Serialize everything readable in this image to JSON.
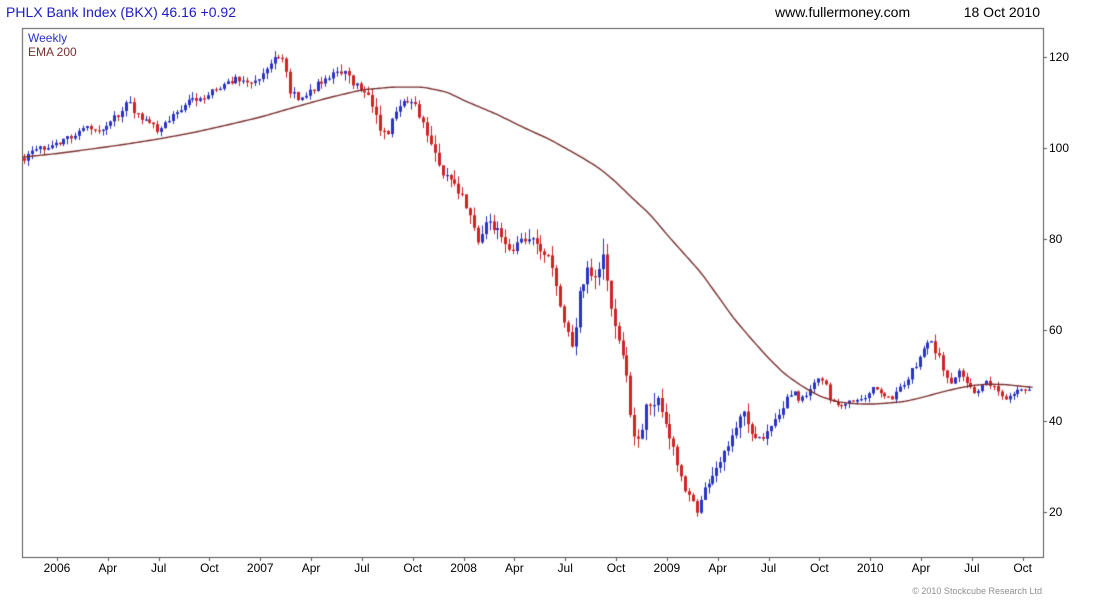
{
  "header": {
    "title": "PHLX Bank Index (BKX) 46.16 +0.92",
    "website": "www.fullermoney.com",
    "date": "18 Oct 2010"
  },
  "legend": {
    "interval": "Weekly",
    "overlay": "EMA 200"
  },
  "footer": {
    "copyright": "© 2010 Stockcube Research Ltd"
  },
  "colors": {
    "up": "#2a34c4",
    "down": "#d02424",
    "ema": "#7a3030",
    "title": "#1c1cc0",
    "frame": "#555555",
    "text": "#000000",
    "copyright": "#8f8f8f",
    "background": "#ffffff"
  },
  "chart_data": {
    "type": "candlestick",
    "instrument": "PHLX Bank Index (BKX)",
    "last": 46.16,
    "change": "+0.92",
    "interval": "Weekly",
    "overlay_name": "EMA 200",
    "x_axis": {
      "domain": [
        2005.828,
        2010.85
      ],
      "ticks": [
        {
          "t": 2006.0,
          "label": "2006"
        },
        {
          "t": 2006.25,
          "label": "Apr"
        },
        {
          "t": 2006.5,
          "label": "Jul"
        },
        {
          "t": 2006.75,
          "label": "Oct"
        },
        {
          "t": 2007.0,
          "label": "2007"
        },
        {
          "t": 2007.25,
          "label": "Apr"
        },
        {
          "t": 2007.5,
          "label": "Jul"
        },
        {
          "t": 2007.75,
          "label": "Oct"
        },
        {
          "t": 2008.0,
          "label": "2008"
        },
        {
          "t": 2008.25,
          "label": "Apr"
        },
        {
          "t": 2008.5,
          "label": "Jul"
        },
        {
          "t": 2008.75,
          "label": "Oct"
        },
        {
          "t": 2009.0,
          "label": "2009"
        },
        {
          "t": 2009.25,
          "label": "Apr"
        },
        {
          "t": 2009.5,
          "label": "Jul"
        },
        {
          "t": 2009.75,
          "label": "Oct"
        },
        {
          "t": 2010.0,
          "label": "2010"
        },
        {
          "t": 2010.25,
          "label": "Apr"
        },
        {
          "t": 2010.5,
          "label": "Jul"
        },
        {
          "t": 2010.75,
          "label": "Oct"
        }
      ]
    },
    "y_axis": {
      "side": "right",
      "domain": [
        10.1,
        126.4
      ],
      "ticks": [
        20,
        40,
        60,
        80,
        100,
        120
      ]
    },
    "price_close_keypoints": [
      [
        2005.83,
        97.5
      ],
      [
        2005.9,
        99.5
      ],
      [
        2005.96,
        100.5
      ],
      [
        2006.04,
        102
      ],
      [
        2006.1,
        103.5
      ],
      [
        2006.16,
        105
      ],
      [
        2006.22,
        103.5
      ],
      [
        2006.28,
        106.5
      ],
      [
        2006.35,
        110
      ],
      [
        2006.42,
        106
      ],
      [
        2006.5,
        104
      ],
      [
        2006.56,
        107
      ],
      [
        2006.62,
        109.5
      ],
      [
        2006.69,
        111
      ],
      [
        2006.75,
        112
      ],
      [
        2006.81,
        113.5
      ],
      [
        2006.88,
        115.5
      ],
      [
        2006.96,
        114.5
      ],
      [
        2007.02,
        117
      ],
      [
        2007.08,
        120
      ],
      [
        2007.12,
        119
      ],
      [
        2007.14,
        112.5
      ],
      [
        2007.2,
        110.5
      ],
      [
        2007.27,
        113.5
      ],
      [
        2007.33,
        116
      ],
      [
        2007.4,
        117
      ],
      [
        2007.46,
        114.5
      ],
      [
        2007.52,
        112.5
      ],
      [
        2007.58,
        106
      ],
      [
        2007.62,
        101.5
      ],
      [
        2007.66,
        107
      ],
      [
        2007.71,
        110
      ],
      [
        2007.77,
        108.5
      ],
      [
        2007.83,
        103
      ],
      [
        2007.87,
        96.5
      ],
      [
        2007.92,
        94
      ],
      [
        2007.98,
        90
      ],
      [
        2008.03,
        86
      ],
      [
        2008.07,
        79.5
      ],
      [
        2008.12,
        84.5
      ],
      [
        2008.17,
        81
      ],
      [
        2008.22,
        76.5
      ],
      [
        2008.28,
        80
      ],
      [
        2008.33,
        81.5
      ],
      [
        2008.38,
        78.5
      ],
      [
        2008.44,
        73
      ],
      [
        2008.48,
        65
      ],
      [
        2008.53,
        55
      ],
      [
        2008.57,
        68
      ],
      [
        2008.61,
        73
      ],
      [
        2008.65,
        70
      ],
      [
        2008.69,
        77.5
      ],
      [
        2008.72,
        68
      ],
      [
        2008.75,
        58
      ],
      [
        2008.79,
        53
      ],
      [
        2008.83,
        38.5
      ],
      [
        2008.87,
        35
      ],
      [
        2008.9,
        43.5
      ],
      [
        2008.94,
        45
      ],
      [
        2008.98,
        41.5
      ],
      [
        2009.03,
        34
      ],
      [
        2009.07,
        28
      ],
      [
        2009.11,
        23
      ],
      [
        2009.15,
        19.5
      ],
      [
        2009.19,
        25
      ],
      [
        2009.23,
        29
      ],
      [
        2009.27,
        31.5
      ],
      [
        2009.31,
        35.5
      ],
      [
        2009.35,
        39.5
      ],
      [
        2009.38,
        41.5
      ],
      [
        2009.42,
        37.5
      ],
      [
        2009.46,
        36
      ],
      [
        2009.5,
        38
      ],
      [
        2009.54,
        41
      ],
      [
        2009.58,
        44.5
      ],
      [
        2009.62,
        46
      ],
      [
        2009.65,
        45
      ],
      [
        2009.69,
        46.5
      ],
      [
        2009.73,
        48.5
      ],
      [
        2009.77,
        49.5
      ],
      [
        2009.81,
        44
      ],
      [
        2009.85,
        43.5
      ],
      [
        2009.9,
        44.5
      ],
      [
        2009.96,
        44.5
      ],
      [
        2010.02,
        47.5
      ],
      [
        2010.06,
        46
      ],
      [
        2010.1,
        44.5
      ],
      [
        2010.15,
        47.5
      ],
      [
        2010.19,
        50
      ],
      [
        2010.23,
        53
      ],
      [
        2010.27,
        56
      ],
      [
        2010.3,
        57.5
      ],
      [
        2010.34,
        54
      ],
      [
        2010.37,
        50.5
      ],
      [
        2010.4,
        48.5
      ],
      [
        2010.44,
        51.5
      ],
      [
        2010.48,
        48
      ],
      [
        2010.52,
        45.5
      ],
      [
        2010.56,
        48.5
      ],
      [
        2010.6,
        48
      ],
      [
        2010.63,
        46
      ],
      [
        2010.67,
        45
      ],
      [
        2010.71,
        46.5
      ],
      [
        2010.75,
        47.5
      ],
      [
        2010.78,
        46.5
      ],
      [
        2010.8,
        46.16
      ]
    ],
    "weekly_volatility_keypoints": [
      [
        2005.83,
        0.02
      ],
      [
        2007.3,
        0.02
      ],
      [
        2007.55,
        0.032
      ],
      [
        2007.9,
        0.036
      ],
      [
        2008.3,
        0.045
      ],
      [
        2008.55,
        0.06
      ],
      [
        2008.8,
        0.1
      ],
      [
        2009.1,
        0.13
      ],
      [
        2009.3,
        0.11
      ],
      [
        2009.45,
        0.075
      ],
      [
        2009.6,
        0.055
      ],
      [
        2009.8,
        0.04
      ],
      [
        2010.1,
        0.034
      ],
      [
        2010.33,
        0.045
      ],
      [
        2010.55,
        0.038
      ],
      [
        2010.8,
        0.03
      ]
    ],
    "ema200_keypoints": [
      [
        2005.83,
        98
      ],
      [
        2006.0,
        98.8
      ],
      [
        2006.17,
        99.8
      ],
      [
        2006.33,
        100.8
      ],
      [
        2006.5,
        102
      ],
      [
        2006.67,
        103.4
      ],
      [
        2006.83,
        105
      ],
      [
        2007.0,
        106.8
      ],
      [
        2007.17,
        109
      ],
      [
        2007.33,
        111
      ],
      [
        2007.5,
        112.8
      ],
      [
        2007.65,
        113.4
      ],
      [
        2007.8,
        113.4
      ],
      [
        2007.92,
        112.3
      ],
      [
        2008.0,
        110.5
      ],
      [
        2008.08,
        109
      ],
      [
        2008.17,
        107.3
      ],
      [
        2008.25,
        105.5
      ],
      [
        2008.33,
        103.8
      ],
      [
        2008.42,
        102
      ],
      [
        2008.5,
        100
      ],
      [
        2008.58,
        98
      ],
      [
        2008.67,
        95.5
      ],
      [
        2008.75,
        92.5
      ],
      [
        2008.83,
        89
      ],
      [
        2008.92,
        85.3
      ],
      [
        2009.0,
        81
      ],
      [
        2009.08,
        77
      ],
      [
        2009.17,
        72.5
      ],
      [
        2009.25,
        67.5
      ],
      [
        2009.33,
        62.5
      ],
      [
        2009.42,
        57.8
      ],
      [
        2009.5,
        53.8
      ],
      [
        2009.58,
        50.3
      ],
      [
        2009.67,
        47.5
      ],
      [
        2009.75,
        45.5
      ],
      [
        2009.83,
        44.3
      ],
      [
        2009.92,
        43.8
      ],
      [
        2010.0,
        43.7
      ],
      [
        2010.08,
        43.9
      ],
      [
        2010.17,
        44.3
      ],
      [
        2010.25,
        45.1
      ],
      [
        2010.33,
        46.1
      ],
      [
        2010.42,
        47.1
      ],
      [
        2010.5,
        47.8
      ],
      [
        2010.58,
        48.1
      ],
      [
        2010.67,
        48.0
      ],
      [
        2010.75,
        47.6
      ],
      [
        2010.85,
        47.2
      ]
    ]
  }
}
